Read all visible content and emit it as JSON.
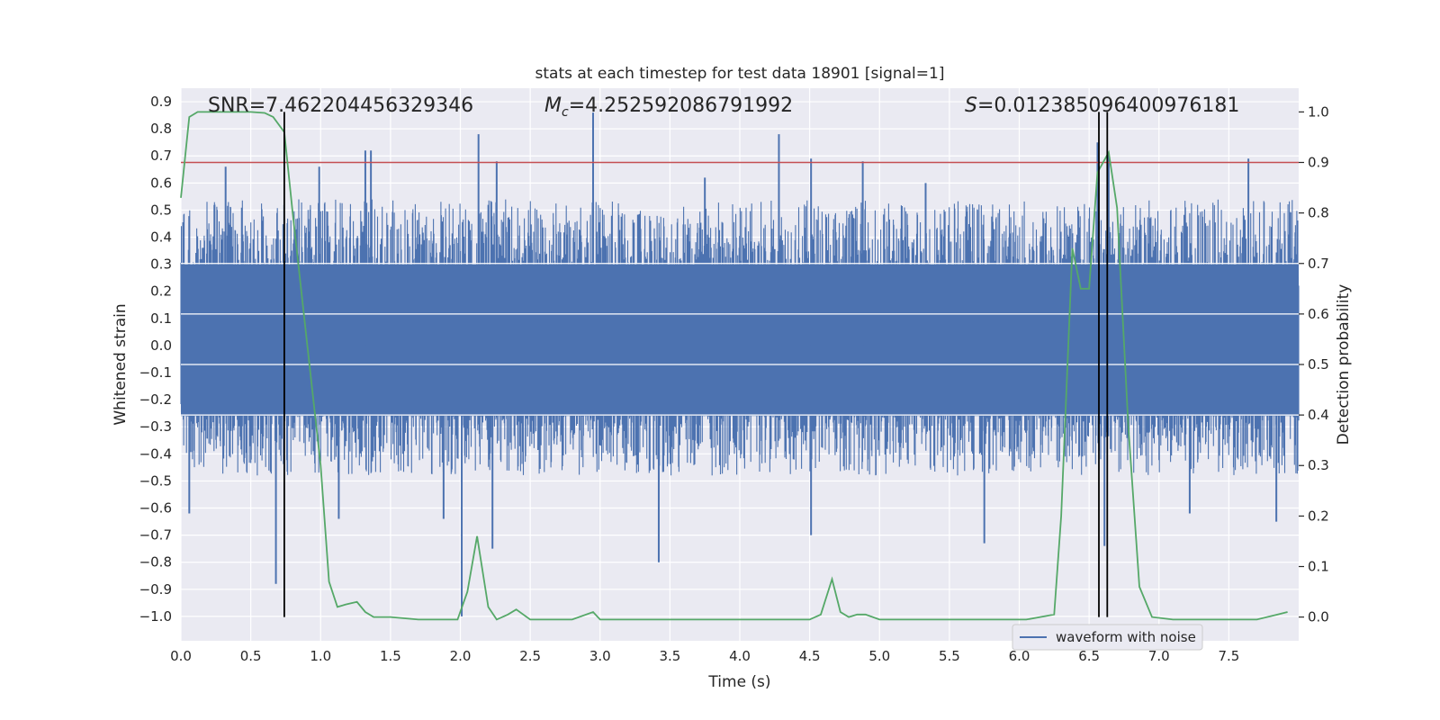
{
  "chart_data": {
    "type": "line",
    "title": "stats at each timestep for test data 18901 [signal=1]",
    "xlabel": "Time (s)",
    "ylabel": "Whitened strain",
    "y2label": "Detection probability",
    "xlim": [
      0,
      8
    ],
    "ylim": [
      -1.09,
      0.95
    ],
    "y2lim": [
      -0.047,
      1.047
    ],
    "x_ticks": [
      "0.0",
      "0.5",
      "1.0",
      "1.5",
      "2.0",
      "2.5",
      "3.0",
      "3.5",
      "4.0",
      "4.5",
      "5.0",
      "5.5",
      "6.0",
      "6.5",
      "7.0",
      "7.5"
    ],
    "y_ticks": [
      "0.9",
      "0.8",
      "0.7",
      "0.6",
      "0.5",
      "0.4",
      "0.3",
      "0.2",
      "0.1",
      "0.0",
      "−0.1",
      "−0.2",
      "−0.3",
      "−0.4",
      "−0.5",
      "−0.6",
      "−0.7",
      "−0.8",
      "−0.9",
      "−1.0"
    ],
    "y2_ticks": [
      "1.0",
      "0.9",
      "0.8",
      "0.7",
      "0.6",
      "0.5",
      "0.4",
      "0.3",
      "0.2",
      "0.1",
      "0.0"
    ],
    "grid": true,
    "legend": {
      "entries": [
        "waveform with noise"
      ],
      "position": "lower-right"
    },
    "annotations": {
      "snr": "SNR=7.462204456329346",
      "mc_symbol": "M",
      "mc_sub": "c",
      "mc_value": "=4.252592086791992",
      "s_symbol": "S",
      "s_value": "=0.012385096400976181"
    },
    "threshold_y2": 0.9,
    "vertical_lines_x": [
      0.74,
      6.57,
      6.63
    ],
    "waveform_series": {
      "name": "waveform with noise",
      "color": "#4c72b0",
      "description_envelope": {
        "typical_max": 0.48,
        "typical_min": -0.42
      },
      "spikes": [
        {
          "x": 0.06,
          "y": -0.62
        },
        {
          "x": 0.68,
          "y": -0.88
        },
        {
          "x": 1.13,
          "y": -0.64
        },
        {
          "x": 1.32,
          "y": 0.72
        },
        {
          "x": 1.36,
          "y": 0.72
        },
        {
          "x": 1.88,
          "y": -0.64
        },
        {
          "x": 2.01,
          "y": -1.0
        },
        {
          "x": 2.13,
          "y": 0.78
        },
        {
          "x": 2.23,
          "y": -0.75
        },
        {
          "x": 2.26,
          "y": 0.68
        },
        {
          "x": 2.95,
          "y": 0.86
        },
        {
          "x": 3.42,
          "y": -0.8
        },
        {
          "x": 4.28,
          "y": 0.78
        },
        {
          "x": 4.51,
          "y": -0.7
        },
        {
          "x": 4.51,
          "y": 0.69
        },
        {
          "x": 4.88,
          "y": 0.68
        },
        {
          "x": 5.75,
          "y": -0.73
        },
        {
          "x": 6.56,
          "y": 0.75
        },
        {
          "x": 6.61,
          "y": -0.74
        },
        {
          "x": 6.64,
          "y": 0.71
        },
        {
          "x": 7.64,
          "y": 0.69
        },
        {
          "x": 7.84,
          "y": -0.65
        },
        {
          "x": 7.22,
          "y": -0.62
        },
        {
          "x": 0.32,
          "y": 0.66
        },
        {
          "x": 0.99,
          "y": 0.66
        },
        {
          "x": 3.75,
          "y": 0.62
        },
        {
          "x": 5.33,
          "y": 0.6
        }
      ]
    },
    "probability_series": {
      "name": "detection probability",
      "color": "#55a868",
      "x": [
        0.0,
        0.06,
        0.12,
        0.2,
        0.3,
        0.4,
        0.5,
        0.6,
        0.66,
        0.74,
        0.8,
        0.9,
        1.0,
        1.06,
        1.12,
        1.18,
        1.26,
        1.32,
        1.38,
        1.5,
        1.7,
        1.9,
        1.98,
        2.05,
        2.12,
        2.2,
        2.26,
        2.34,
        2.4,
        2.5,
        2.8,
        2.95,
        3.0,
        3.2,
        3.5,
        3.8,
        4.0,
        4.3,
        4.5,
        4.58,
        4.66,
        4.72,
        4.78,
        4.84,
        4.9,
        5.0,
        5.6,
        6.05,
        6.15,
        6.25,
        6.3,
        6.38,
        6.44,
        6.5,
        6.56,
        6.64,
        6.7,
        6.78,
        6.86,
        6.95,
        7.1,
        7.5,
        7.7,
        7.85,
        7.92
      ],
      "y": [
        0.83,
        0.99,
        1.0,
        1.0,
        1.0,
        1.0,
        1.0,
        0.998,
        0.99,
        0.96,
        0.8,
        0.55,
        0.3,
        0.07,
        0.02,
        0.025,
        0.03,
        0.01,
        0.0,
        0.0,
        -0.005,
        -0.005,
        -0.005,
        0.05,
        0.16,
        0.02,
        -0.005,
        0.005,
        0.015,
        -0.005,
        -0.005,
        0.01,
        -0.005,
        -0.005,
        -0.005,
        -0.005,
        -0.005,
        -0.005,
        -0.005,
        0.005,
        0.075,
        0.01,
        0.0,
        0.005,
        0.005,
        -0.005,
        -0.005,
        -0.005,
        0.0,
        0.005,
        0.2,
        0.73,
        0.65,
        0.65,
        0.88,
        0.92,
        0.81,
        0.38,
        0.06,
        0.0,
        -0.005,
        -0.005,
        -0.005,
        0.005,
        0.01
      ]
    },
    "threshold_color": "#c44e52",
    "vertical_line_color": "#000000"
  }
}
